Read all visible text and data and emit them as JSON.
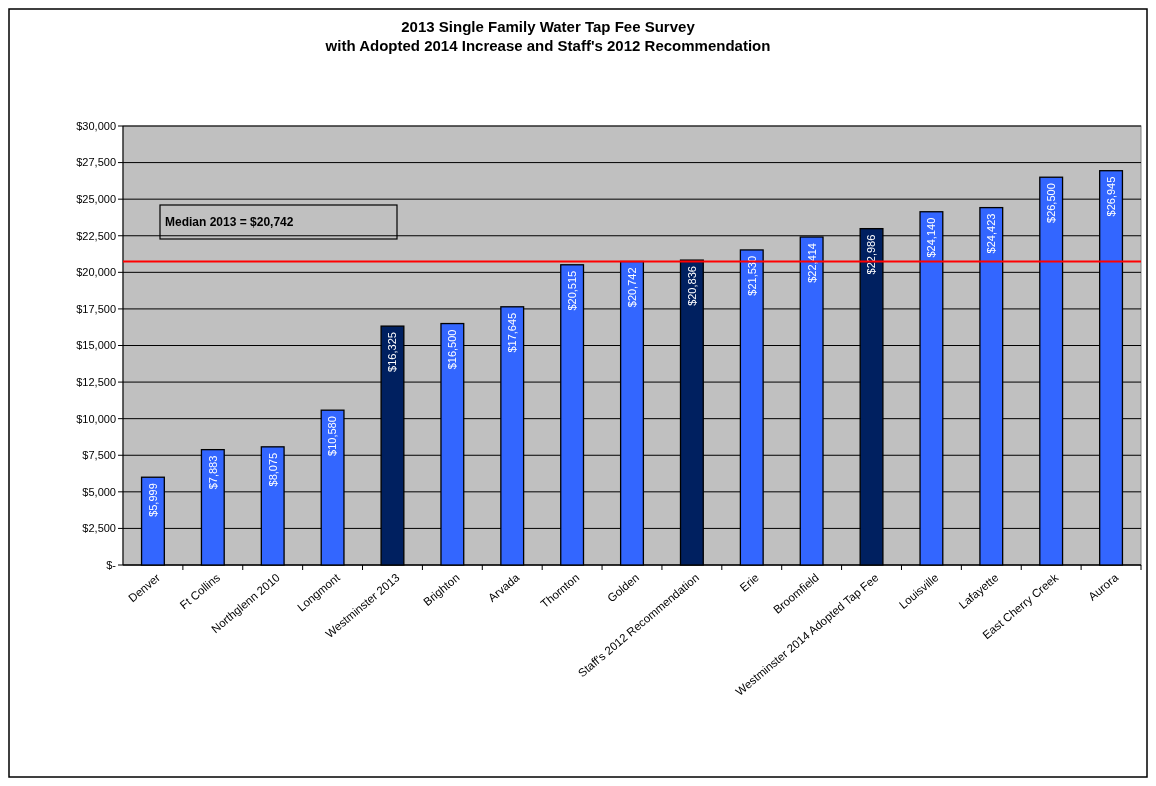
{
  "chart_data": {
    "type": "bar",
    "title": "2013 Single Family Water Tap Fee Survey",
    "subtitle": "with Adopted 2014 Increase and Staff's 2012 Recommendation",
    "categories": [
      "Denver",
      "Ft Collins",
      "Northglenn 2010",
      "Longmont",
      "Westminster 2013",
      "Brighton",
      "Arvada",
      "Thornton",
      "Golden",
      "Staff's 2012 Recommendation",
      "Erie",
      "Broomfield",
      "Westminster 2014 Adopted Tap Fee",
      "Louisville",
      "Lafayette",
      "East Cherry Creek",
      "Aurora"
    ],
    "values": [
      5999,
      7883,
      8075,
      10580,
      16325,
      16500,
      17645,
      20515,
      20742,
      20836,
      21530,
      22414,
      22986,
      24140,
      24423,
      26500,
      26945
    ],
    "value_labels": [
      "$5,999",
      "$7,883",
      "$8,075",
      "$10,580",
      "$16,325",
      "$16,500",
      "$17,645",
      "$20,515",
      "$20,742",
      "$20,836",
      "$21,530",
      "$22,414",
      "$22,986",
      "$24,140",
      "$24,423",
      "$26,500",
      "$26,945"
    ],
    "colors": [
      "#3366ff",
      "#3366ff",
      "#3366ff",
      "#3366ff",
      "#002060",
      "#3366ff",
      "#3366ff",
      "#3366ff",
      "#3366ff",
      "#002060",
      "#3366ff",
      "#3366ff",
      "#002060",
      "#3366ff",
      "#3366ff",
      "#3366ff",
      "#3366ff"
    ],
    "ylim": [
      0,
      30000
    ],
    "yticks": [
      {
        "value": 0,
        "label": "$-"
      },
      {
        "value": 2500,
        "label": "$2,500"
      },
      {
        "value": 5000,
        "label": "$5,000"
      },
      {
        "value": 7500,
        "label": "$7,500"
      },
      {
        "value": 10000,
        "label": "$10,000"
      },
      {
        "value": 12500,
        "label": "$12,500"
      },
      {
        "value": 15000,
        "label": "$15,000"
      },
      {
        "value": 17500,
        "label": "$17,500"
      },
      {
        "value": 20000,
        "label": "$20,000"
      },
      {
        "value": 22500,
        "label": "$22,500"
      },
      {
        "value": 25000,
        "label": "$25,000"
      },
      {
        "value": 27500,
        "label": "$27,500"
      },
      {
        "value": 30000,
        "label": "$30,000"
      }
    ],
    "grid": "y",
    "ref_lines": [
      {
        "axis": "y",
        "value": 20742,
        "label": "Median 2013 = $20,742",
        "color": "#ff0000"
      }
    ]
  }
}
